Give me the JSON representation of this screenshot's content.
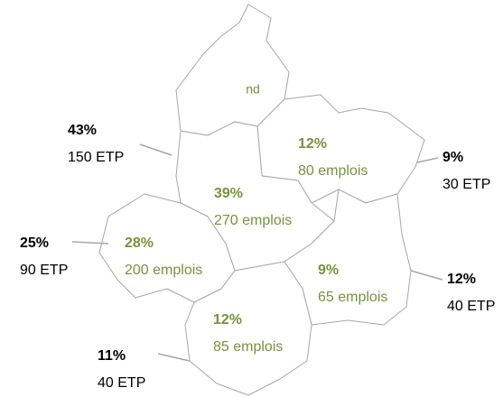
{
  "regions": [
    {
      "percent": null,
      "label": "nd"
    },
    {
      "percent": "12%",
      "label": "80 emplois"
    },
    {
      "percent": "39%",
      "label": "270 emplois"
    },
    {
      "percent": "28%",
      "label": "200 emplois"
    },
    {
      "percent": "9%",
      "label": "65 emplois"
    },
    {
      "percent": "12%",
      "label": "85 emplois"
    }
  ],
  "callouts": [
    {
      "percent": "43%",
      "label": "150 ETP"
    },
    {
      "percent": "9%",
      "label": "30 ETP"
    },
    {
      "percent": "25%",
      "label": "90 ETP"
    },
    {
      "percent": "12%",
      "label": "40 ETP"
    },
    {
      "percent": "11%",
      "label": "40 ETP"
    }
  ]
}
